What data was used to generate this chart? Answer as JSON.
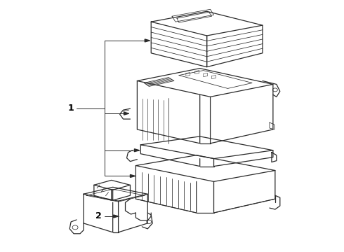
{
  "background_color": "#ffffff",
  "line_color": "#2a2a2a",
  "label_color": "#000000",
  "fig_width": 4.9,
  "fig_height": 3.6,
  "dpi": 100,
  "label1": "1",
  "label2": "2"
}
